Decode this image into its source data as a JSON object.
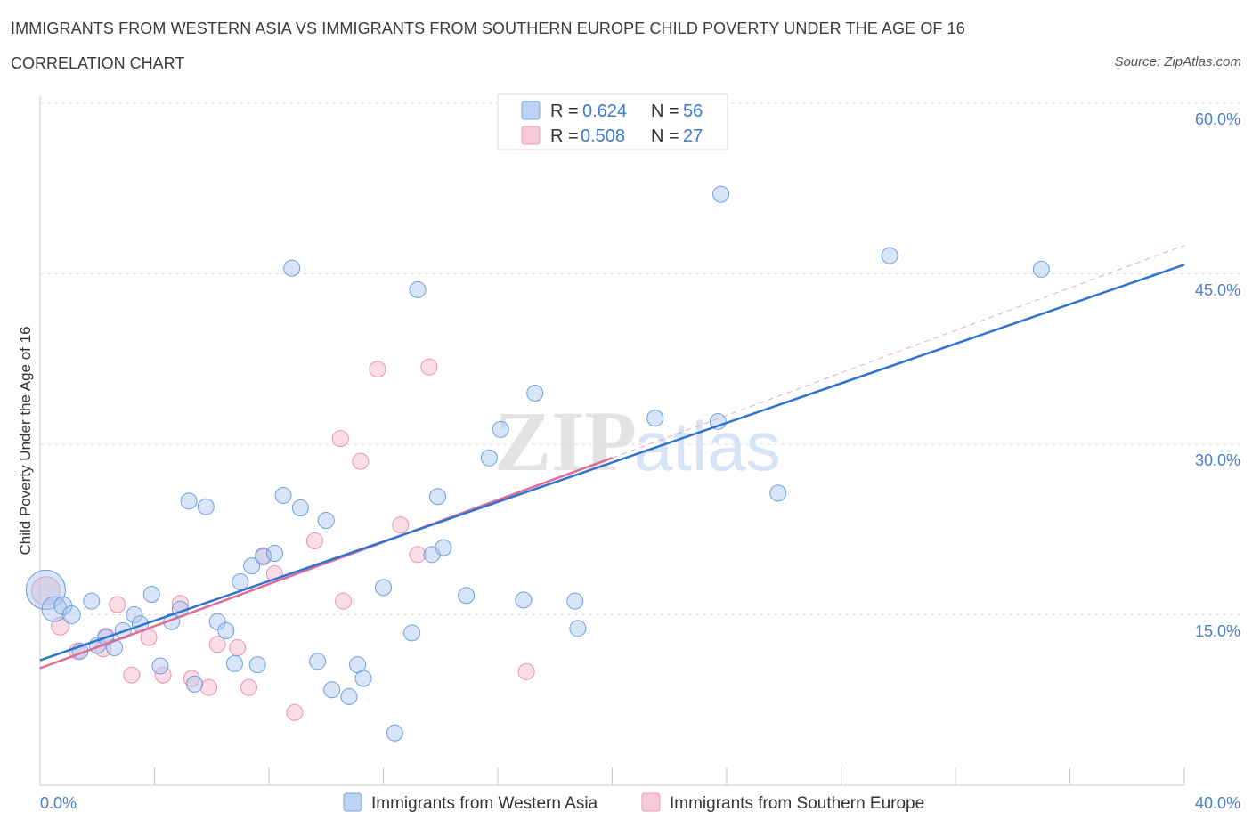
{
  "header": {
    "title": "IMMIGRANTS FROM WESTERN ASIA VS IMMIGRANTS FROM SOUTHERN EUROPE CHILD POVERTY UNDER THE AGE OF 16",
    "subtitle": "CORRELATION CHART",
    "source": "Source: ZipAtlas.com"
  },
  "watermark": {
    "zip": "ZIP",
    "atlas": "atlas"
  },
  "legend": {
    "rows": [
      {
        "r_label": "R =",
        "r_value": "0.624",
        "n_label": "N =",
        "n_value": "56"
      },
      {
        "r_label": "R =",
        "r_value": "0.508",
        "n_label": "N =",
        "n_value": "27"
      }
    ]
  },
  "chart_data": {
    "type": "scatter",
    "title": "IMMIGRANTS FROM WESTERN ASIA VS IMMIGRANTS FROM SOUTHERN EUROPE CHILD POVERTY UNDER THE AGE OF 16",
    "xlabel": "",
    "ylabel": "Child Poverty Under the Age of 16",
    "xlim": [
      0,
      40
    ],
    "ylim": [
      0,
      60
    ],
    "x_tick_labels": [
      "0.0%",
      "40.0%"
    ],
    "y_tick_labels": [
      "15.0%",
      "30.0%",
      "45.0%",
      "60.0%"
    ],
    "y_ticks": [
      15,
      30,
      45,
      60
    ],
    "colors": {
      "blue": "#6b9fe0",
      "pink": "#ee90ad",
      "blue_line": "#2f73d1",
      "pink_line": "#e06c95"
    },
    "series": [
      {
        "name": "Immigrants from Western Asia",
        "color": "#6b9fe0",
        "R": 0.624,
        "N": 56,
        "trend": {
          "x0": 0,
          "y0": 11.0,
          "x1": 40,
          "y1": 45.8
        },
        "points": [
          [
            0.2,
            17.2,
            22
          ],
          [
            0.5,
            15.5,
            14
          ],
          [
            0.8,
            15.8,
            10
          ],
          [
            1.1,
            15.0,
            10
          ],
          [
            1.4,
            11.8,
            9
          ],
          [
            1.8,
            16.2,
            9
          ],
          [
            2.0,
            12.3,
            9
          ],
          [
            2.3,
            13.0,
            9
          ],
          [
            2.6,
            12.1,
            9
          ],
          [
            2.9,
            13.6,
            9
          ],
          [
            3.3,
            15.0,
            9
          ],
          [
            3.5,
            14.2,
            9
          ],
          [
            3.9,
            16.8,
            9
          ],
          [
            4.2,
            10.5,
            9
          ],
          [
            4.6,
            14.4,
            9
          ],
          [
            4.9,
            15.5,
            9
          ],
          [
            5.2,
            25.0,
            9
          ],
          [
            5.4,
            8.9,
            9
          ],
          [
            5.8,
            24.5,
            9
          ],
          [
            6.2,
            14.4,
            9
          ],
          [
            6.5,
            13.6,
            9
          ],
          [
            6.8,
            10.7,
            9
          ],
          [
            7.0,
            17.9,
            9
          ],
          [
            7.4,
            19.3,
            9
          ],
          [
            7.6,
            10.6,
            9
          ],
          [
            7.8,
            20.1,
            9
          ],
          [
            8.2,
            20.4,
            9
          ],
          [
            8.5,
            25.5,
            9
          ],
          [
            8.8,
            45.5,
            9
          ],
          [
            9.1,
            24.4,
            9
          ],
          [
            9.7,
            10.9,
            9
          ],
          [
            10.0,
            23.3,
            9
          ],
          [
            10.2,
            8.4,
            9
          ],
          [
            10.8,
            7.8,
            9
          ],
          [
            11.1,
            10.6,
            9
          ],
          [
            11.3,
            9.4,
            9
          ],
          [
            12.0,
            17.4,
            9
          ],
          [
            12.4,
            4.6,
            9
          ],
          [
            13.0,
            13.4,
            9
          ],
          [
            13.2,
            43.6,
            9
          ],
          [
            13.7,
            20.3,
            9
          ],
          [
            13.9,
            25.4,
            9
          ],
          [
            14.1,
            20.9,
            9
          ],
          [
            14.9,
            16.7,
            9
          ],
          [
            15.7,
            28.8,
            9
          ],
          [
            16.1,
            31.3,
            9
          ],
          [
            16.9,
            16.3,
            9
          ],
          [
            17.3,
            34.5,
            9
          ],
          [
            18.7,
            16.2,
            9
          ],
          [
            18.8,
            13.8,
            9
          ],
          [
            21.5,
            32.3,
            9
          ],
          [
            23.7,
            32.0,
            9
          ],
          [
            23.8,
            52.0,
            9
          ],
          [
            25.8,
            25.7,
            9
          ],
          [
            29.7,
            46.6,
            9
          ],
          [
            35.0,
            45.4,
            9
          ]
        ]
      },
      {
        "name": "Immigrants from Southern Europe",
        "color": "#ee90ad",
        "R": 0.508,
        "N": 27,
        "trend": {
          "x0": 0,
          "y0": 10.3,
          "x1": 20,
          "y1": 28.8
        },
        "trend_extension": {
          "x0": 20,
          "y0": 28.8,
          "x1": 40,
          "y1": 47.5
        },
        "points": [
          [
            0.2,
            17.1,
            16
          ],
          [
            0.7,
            14.0,
            10
          ],
          [
            1.3,
            11.8,
            9
          ],
          [
            2.2,
            12.0,
            9
          ],
          [
            2.3,
            13.1,
            9
          ],
          [
            2.7,
            15.9,
            9
          ],
          [
            3.2,
            9.7,
            9
          ],
          [
            3.8,
            13.0,
            9
          ],
          [
            4.3,
            9.7,
            9
          ],
          [
            4.9,
            16.0,
            9
          ],
          [
            5.3,
            9.4,
            9
          ],
          [
            5.9,
            8.6,
            9
          ],
          [
            6.2,
            12.4,
            9
          ],
          [
            6.9,
            12.1,
            9
          ],
          [
            7.3,
            8.6,
            9
          ],
          [
            7.8,
            20.2,
            9
          ],
          [
            8.2,
            18.6,
            9
          ],
          [
            8.9,
            6.4,
            9
          ],
          [
            9.6,
            21.5,
            9
          ],
          [
            10.5,
            30.5,
            9
          ],
          [
            10.6,
            16.2,
            9
          ],
          [
            11.2,
            28.5,
            9
          ],
          [
            11.8,
            36.6,
            9
          ],
          [
            12.6,
            22.9,
            9
          ],
          [
            13.2,
            20.3,
            9
          ],
          [
            13.6,
            36.8,
            9
          ],
          [
            17.0,
            10.0,
            9
          ]
        ]
      }
    ],
    "bottom_legend": [
      "Immigrants from Western Asia",
      "Immigrants from Southern Europe"
    ]
  }
}
